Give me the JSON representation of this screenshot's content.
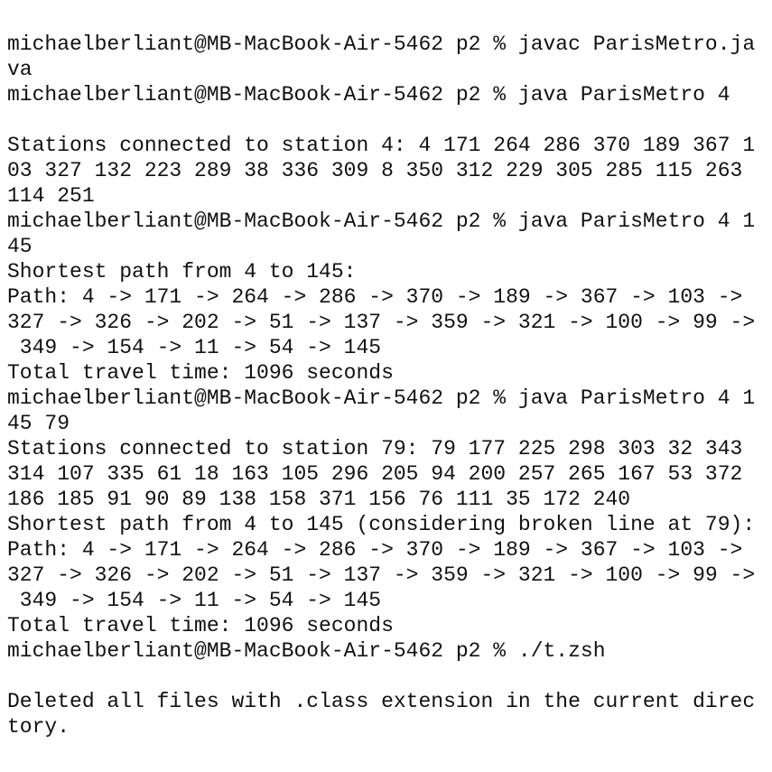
{
  "terminal": {
    "lines": [
      "michaelberliant@MB-MacBook-Air-5462 p2 % javac ParisMetro.ja",
      "va",
      "michaelberliant@MB-MacBook-Air-5462 p2 % java ParisMetro 4",
      "Stations connected to station 4: 4 171 264 286 370 189 367 1",
      "03 327 132 223 289 38 336 309 8 350 312 229 305 285 115 263",
      "114 251",
      "michaelberliant@MB-MacBook-Air-5462 p2 % java ParisMetro 4 1",
      "45",
      "Shortest path from 4 to 145:",
      "Path: 4 -> 171 -> 264 -> 286 -> 370 -> 189 -> 367 -> 103 ->",
      "327 -> 326 -> 202 -> 51 -> 137 -> 359 -> 321 -> 100 -> 99 ->",
      " 349 -> 154 -> 11 -> 54 -> 145",
      "Total travel time: 1096 seconds",
      "michaelberliant@MB-MacBook-Air-5462 p2 % java ParisMetro 4 1",
      "45 79",
      "Stations connected to station 79: 79 177 225 298 303 32 343",
      "314 107 335 61 18 163 105 296 205 94 200 257 265 167 53 372",
      "186 185 91 90 89 138 158 371 156 76 111 35 172 240",
      "Shortest path from 4 to 145 (considering broken line at 79):",
      "Path: 4 -> 171 -> 264 -> 286 -> 370 -> 189 -> 367 -> 103 ->",
      "327 -> 326 -> 202 -> 51 -> 137 -> 359 -> 321 -> 100 -> 99 ->",
      " 349 -> 154 -> 11 -> 54 -> 145",
      "Total travel time: 1096 seconds",
      "michaelberliant@MB-MacBook-Air-5462 p2 % ./t.zsh",
      "Deleted all files with .class extension in the current direc",
      "tory."
    ]
  }
}
